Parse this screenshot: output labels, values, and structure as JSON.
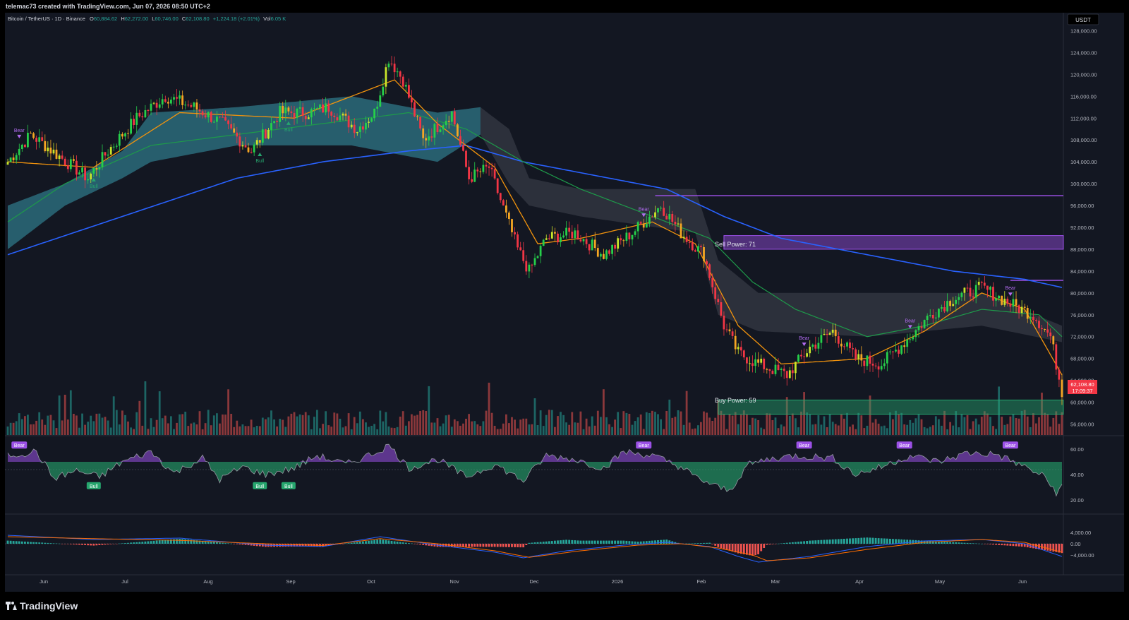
{
  "header": {
    "credit": "telemac73 created with TradingView.com, Jun 07, 2026 08:50 UTC+2"
  },
  "footer": {
    "brand": "TradingView"
  },
  "chart_data": {
    "type": "candlestick",
    "symbol_line": {
      "name": "Bitcoin / TetherUS · 1D · Binance",
      "o_label": "O",
      "o": "60,884.62",
      "h_label": "H",
      "h": "62,272.00",
      "l_label": "L",
      "l": "60,746.00",
      "c_label": "C",
      "c": "62,108.80",
      "change": "+1,224.18 (+2.01%)",
      "vol_label": "Vol",
      "vol": "6.05 K"
    },
    "currency": "USDT",
    "last_price": "62,108.80",
    "countdown": "17:09:37",
    "price_axis": [
      "128,000.00",
      "124,000.00",
      "120,000.00",
      "116,000.00",
      "112,000.00",
      "108,000.00",
      "104,000.00",
      "100,000.00",
      "96,000.00",
      "92,000.00",
      "88,000.00",
      "84,000.00",
      "80,000.00",
      "76,000.00",
      "72,000.00",
      "68,000.00",
      "64,000.00",
      "60,000.00",
      "56,000.00"
    ],
    "rsi_axis": [
      "60.00",
      "40.00",
      "20.00"
    ],
    "macd_axis": [
      "4,000.00",
      "0.00",
      "−4,000.00"
    ],
    "time_axis": [
      "Jun",
      "Jul",
      "Aug",
      "Sep",
      "Oct",
      "Nov",
      "Dec",
      "2026",
      "Feb",
      "Mar",
      "Apr",
      "May",
      "Jun"
    ],
    "boxes": {
      "sell": "Sell Power: 71",
      "buy": "Buy Power: 59"
    },
    "signals": {
      "bear": "Bear",
      "bull": "Bull"
    },
    "ylim": [
      54000,
      130000
    ],
    "close_anchors": [
      [
        0,
        104000
      ],
      [
        8,
        109000
      ],
      [
        18,
        105000
      ],
      [
        28,
        101000
      ],
      [
        35,
        106000
      ],
      [
        45,
        112000
      ],
      [
        55,
        116000
      ],
      [
        65,
        114000
      ],
      [
        75,
        111000
      ],
      [
        85,
        106000
      ],
      [
        95,
        113000
      ],
      [
        105,
        113000
      ],
      [
        112,
        114000
      ],
      [
        122,
        110000
      ],
      [
        128,
        113000
      ],
      [
        133,
        123000
      ],
      [
        138,
        119000
      ],
      [
        145,
        108000
      ],
      [
        155,
        113000
      ],
      [
        161,
        101000
      ],
      [
        168,
        103000
      ],
      [
        178,
        88000
      ],
      [
        182,
        84000
      ],
      [
        188,
        90000
      ],
      [
        198,
        91000
      ],
      [
        208,
        87000
      ],
      [
        218,
        91000
      ],
      [
        228,
        96000
      ],
      [
        235,
        91000
      ],
      [
        243,
        87000
      ],
      [
        250,
        74000
      ],
      [
        255,
        69000
      ],
      [
        262,
        67000
      ],
      [
        272,
        65000
      ],
      [
        280,
        70000
      ],
      [
        288,
        73000
      ],
      [
        296,
        68000
      ],
      [
        305,
        67000
      ],
      [
        315,
        72000
      ],
      [
        322,
        76000
      ],
      [
        330,
        79000
      ],
      [
        340,
        81000
      ],
      [
        350,
        78000
      ],
      [
        358,
        76000
      ],
      [
        364,
        72000
      ],
      [
        368,
        62000
      ]
    ],
    "ema_fast_anchors": [
      [
        0,
        104000
      ],
      [
        30,
        103000
      ],
      [
        60,
        113000
      ],
      [
        100,
        112000
      ],
      [
        135,
        119000
      ],
      [
        150,
        111000
      ],
      [
        170,
        103000
      ],
      [
        185,
        89000
      ],
      [
        200,
        90000
      ],
      [
        225,
        93000
      ],
      [
        240,
        89000
      ],
      [
        255,
        74000
      ],
      [
        270,
        67000
      ],
      [
        300,
        68000
      ],
      [
        320,
        73000
      ],
      [
        340,
        80000
      ],
      [
        355,
        77000
      ],
      [
        368,
        65000
      ]
    ],
    "ma_mid_anchors": [
      [
        0,
        93000
      ],
      [
        20,
        100000
      ],
      [
        50,
        107000
      ],
      [
        80,
        109000
      ],
      [
        110,
        111000
      ],
      [
        140,
        113000
      ],
      [
        160,
        110000
      ],
      [
        180,
        104000
      ],
      [
        200,
        99000
      ],
      [
        225,
        94000
      ],
      [
        245,
        90000
      ],
      [
        260,
        82000
      ],
      [
        275,
        77000
      ],
      [
        300,
        72000
      ],
      [
        320,
        74000
      ],
      [
        340,
        77000
      ],
      [
        360,
        76000
      ],
      [
        368,
        72000
      ]
    ],
    "ma_slow_anchors": [
      [
        0,
        87000
      ],
      [
        40,
        94000
      ],
      [
        80,
        101000
      ],
      [
        110,
        104000
      ],
      [
        140,
        106000
      ],
      [
        160,
        107000
      ],
      [
        180,
        104000
      ],
      [
        200,
        102000
      ],
      [
        230,
        99000
      ],
      [
        250,
        94000
      ],
      [
        270,
        90000
      ],
      [
        300,
        87000
      ],
      [
        330,
        84000
      ],
      [
        355,
        82500
      ],
      [
        368,
        81000
      ]
    ],
    "cloud_top_anchors": [
      [
        0,
        96000
      ],
      [
        20,
        100000
      ],
      [
        40,
        106000
      ],
      [
        50,
        113000
      ],
      [
        80,
        114000
      ],
      [
        120,
        116000
      ],
      [
        150,
        113000
      ],
      [
        165,
        114000
      ],
      [
        175,
        110000
      ],
      [
        182,
        101000
      ],
      [
        200,
        99000
      ],
      [
        240,
        99000
      ],
      [
        248,
        86000
      ],
      [
        262,
        80000
      ],
      [
        300,
        80000
      ],
      [
        340,
        80000
      ],
      [
        368,
        74000
      ]
    ],
    "cloud_bot_anchors": [
      [
        0,
        88000
      ],
      [
        20,
        96000
      ],
      [
        40,
        101000
      ],
      [
        50,
        104000
      ],
      [
        80,
        107000
      ],
      [
        120,
        107000
      ],
      [
        150,
        104000
      ],
      [
        165,
        109000
      ],
      [
        175,
        100000
      ],
      [
        182,
        96000
      ],
      [
        200,
        94000
      ],
      [
        240,
        91000
      ],
      [
        248,
        76000
      ],
      [
        262,
        73000
      ],
      [
        300,
        72000
      ],
      [
        340,
        74000
      ],
      [
        368,
        71000
      ]
    ],
    "rsi_anchors": [
      [
        0,
        55
      ],
      [
        10,
        58
      ],
      [
        16,
        37
      ],
      [
        24,
        43
      ],
      [
        32,
        38
      ],
      [
        40,
        50
      ],
      [
        50,
        58
      ],
      [
        58,
        41
      ],
      [
        68,
        53
      ],
      [
        74,
        36
      ],
      [
        82,
        46
      ],
      [
        90,
        40
      ],
      [
        100,
        45
      ],
      [
        108,
        55
      ],
      [
        118,
        48
      ],
      [
        128,
        57
      ],
      [
        133,
        63
      ],
      [
        140,
        45
      ],
      [
        150,
        52
      ],
      [
        160,
        38
      ],
      [
        170,
        48
      ],
      [
        180,
        35
      ],
      [
        188,
        55
      ],
      [
        198,
        52
      ],
      [
        208,
        45
      ],
      [
        215,
        58
      ],
      [
        225,
        55
      ],
      [
        235,
        46
      ],
      [
        240,
        38
      ],
      [
        248,
        30
      ],
      [
        252,
        27
      ],
      [
        258,
        47
      ],
      [
        265,
        52
      ],
      [
        275,
        55
      ],
      [
        288,
        53
      ],
      [
        296,
        40
      ],
      [
        305,
        46
      ],
      [
        315,
        55
      ],
      [
        325,
        50
      ],
      [
        335,
        57
      ],
      [
        345,
        56
      ],
      [
        355,
        46
      ],
      [
        362,
        38
      ],
      [
        366,
        26
      ],
      [
        368,
        30
      ]
    ],
    "macd_anchors": [
      [
        0,
        3000
      ],
      [
        30,
        1500
      ],
      [
        60,
        2000
      ],
      [
        90,
        -500
      ],
      [
        110,
        -1000
      ],
      [
        130,
        2500
      ],
      [
        150,
        -500
      ],
      [
        170,
        -3000
      ],
      [
        180,
        -5000
      ],
      [
        195,
        -2500
      ],
      [
        215,
        -500
      ],
      [
        230,
        500
      ],
      [
        245,
        -1000
      ],
      [
        255,
        -4500
      ],
      [
        262,
        -6500
      ],
      [
        280,
        -4500
      ],
      [
        300,
        -1000
      ],
      [
        320,
        1000
      ],
      [
        340,
        1500
      ],
      [
        355,
        0
      ],
      [
        368,
        -4500
      ]
    ],
    "signal_anchors": [
      [
        0,
        2500
      ],
      [
        30,
        1800
      ],
      [
        60,
        1200
      ],
      [
        90,
        0
      ],
      [
        110,
        -600
      ],
      [
        130,
        1800
      ],
      [
        150,
        0
      ],
      [
        170,
        -2500
      ],
      [
        182,
        -4800
      ],
      [
        200,
        -2500
      ],
      [
        220,
        -500
      ],
      [
        235,
        0
      ],
      [
        248,
        -1500
      ],
      [
        260,
        -4000
      ],
      [
        265,
        -6000
      ],
      [
        280,
        -5000
      ],
      [
        300,
        -2000
      ],
      [
        320,
        500
      ],
      [
        340,
        1500
      ],
      [
        355,
        500
      ],
      [
        368,
        -3000
      ]
    ],
    "bear_marks": [
      [
        4,
        "price"
      ],
      [
        222,
        "price"
      ],
      [
        278,
        "price"
      ],
      [
        315,
        "price"
      ],
      [
        350,
        "price"
      ]
    ],
    "bull_marks": [
      [
        30,
        "price"
      ],
      [
        88,
        "price"
      ],
      [
        98,
        "price"
      ]
    ],
    "bars": 369
  }
}
